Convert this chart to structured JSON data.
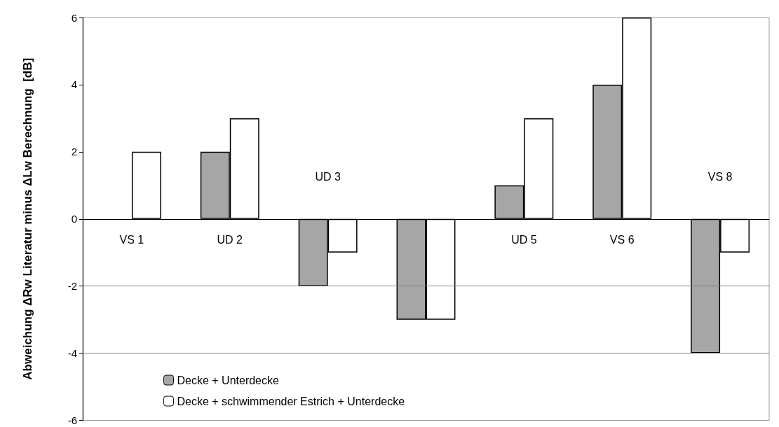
{
  "chart_data": {
    "type": "bar",
    "ylabel": "Abweichung ΔRw Literatur minus ΔLw Berechnung  [dB]",
    "categories": [
      "VS 1",
      "UD 2",
      "UD 3",
      null,
      "UD 5",
      "VS 6",
      "VS 8"
    ],
    "series": [
      {
        "name": "Decke + Unterdecke",
        "color": "#a6a6a6",
        "values": [
          null,
          2,
          -2,
          -3,
          1,
          4,
          -4
        ]
      },
      {
        "name": "Decke + schwimmender Estrich + Unterdecke",
        "color": "#ffffff",
        "values": [
          2,
          3,
          -1,
          -3,
          3,
          6,
          -1
        ]
      }
    ],
    "ylim": [
      -6,
      6
    ],
    "yticks": [
      -6,
      -4,
      -2,
      0,
      2,
      4,
      6
    ],
    "ref_lines": [
      {
        "axis": "y",
        "value": -2,
        "color": "#808080"
      },
      {
        "axis": "y",
        "value": -4,
        "color": "#808080"
      }
    ],
    "grid": false,
    "legend": "bottom left"
  }
}
